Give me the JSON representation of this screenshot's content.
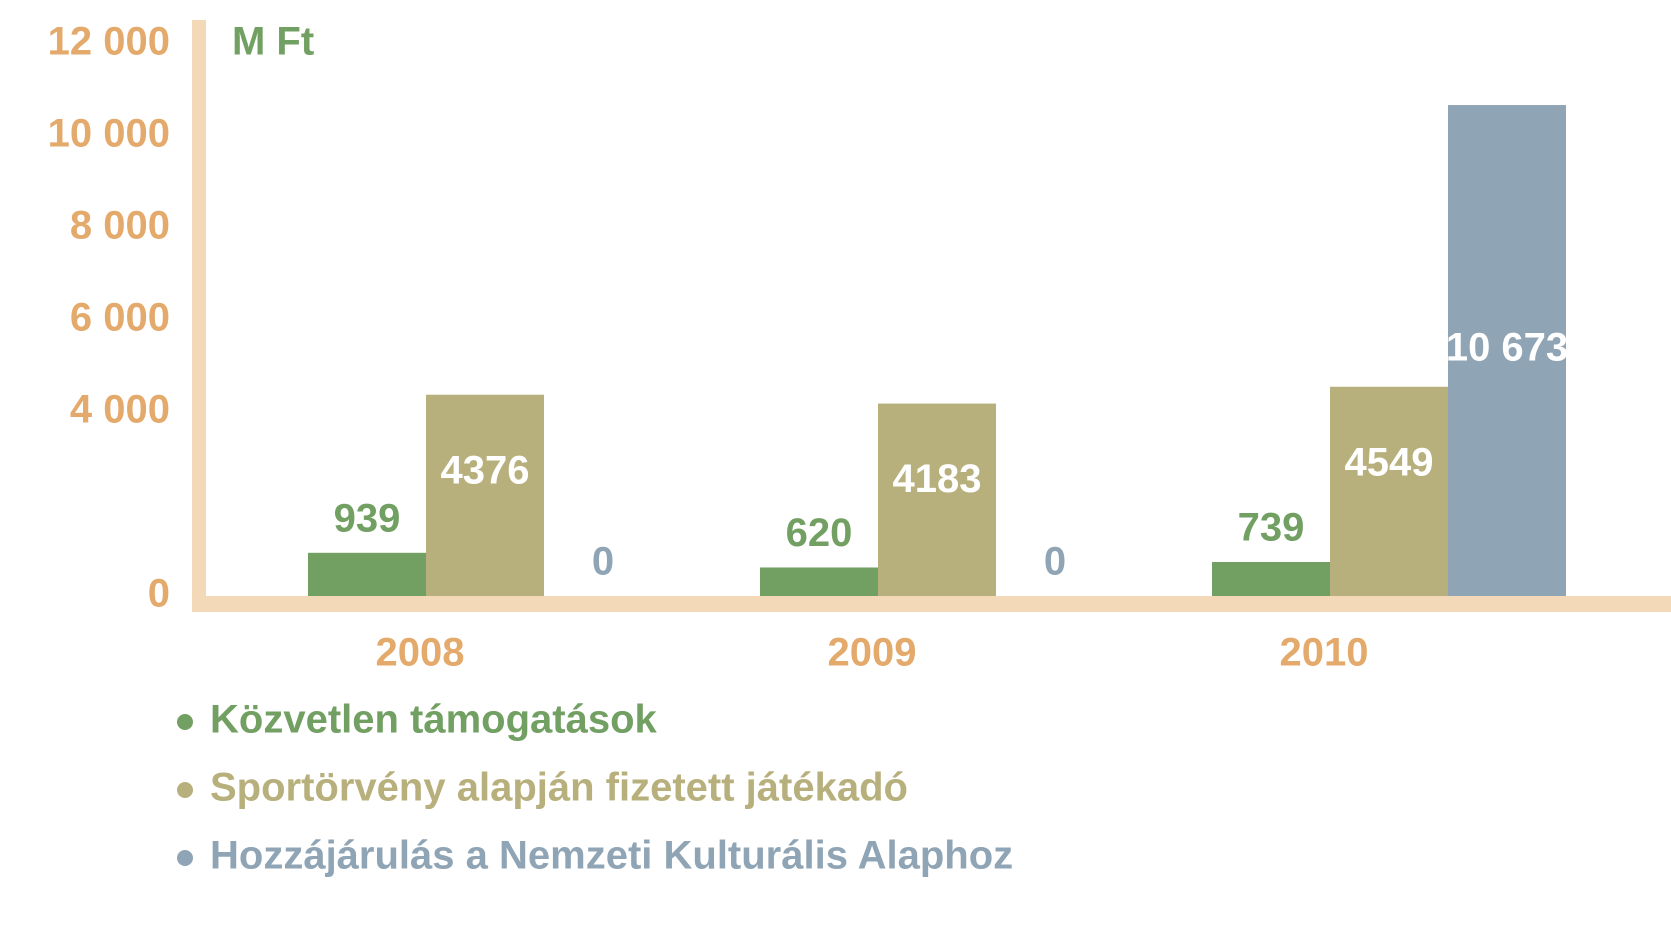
{
  "chart_data": {
    "type": "bar",
    "unit": "M Ft",
    "categories": [
      "2008",
      "2009",
      "2010"
    ],
    "series": [
      {
        "name": "Közvetlen támogatások",
        "color": "#72a063",
        "values": [
          939,
          620,
          739
        ]
      },
      {
        "name": "Sportörvény alapján fizetett játékadó",
        "color": "#b8b07c",
        "values": [
          4376,
          4183,
          4549
        ]
      },
      {
        "name": "Hozzájárulás a Nemzeti Kulturális Alaphoz",
        "color": "#8fa4b4",
        "values": [
          0,
          0,
          10673
        ],
        "value_labels": [
          "0",
          "0",
          "10 673"
        ]
      }
    ],
    "ylim": [
      0,
      12000
    ],
    "yticks": [
      0,
      {
        "value": 4000,
        "label": "4 000"
      },
      {
        "value": 6000,
        "label": "6 000"
      },
      {
        "value": 8000,
        "label": "8 000"
      },
      {
        "value": 10000,
        "label": "10 000"
      },
      {
        "value": 12000,
        "label": "12 000"
      }
    ],
    "axis_color": "#f3d9b8",
    "tick_color": "#e3aa6c"
  }
}
